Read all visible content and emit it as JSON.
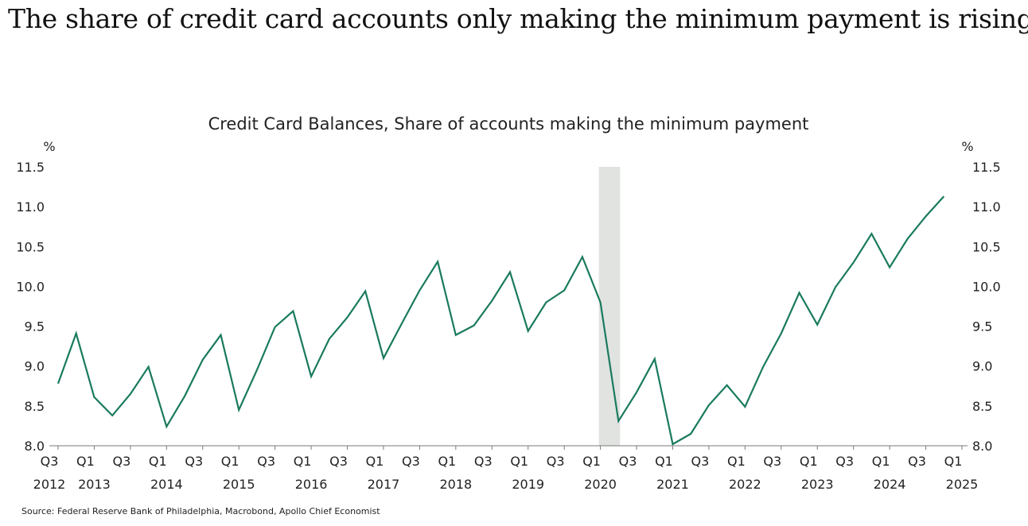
{
  "headline": "The share of credit card accounts only making the minimum payment is rising",
  "source": "Source: Federal Reserve Bank of Philadelphia, Macrobond, Apollo Chief Economist",
  "chart_data": {
    "type": "line",
    "title": "Credit Card Balances, Share of accounts making the minimum payment",
    "y_unit_left": "%",
    "y_unit_right": "%",
    "ylim": [
      8.0,
      11.5
    ],
    "yticks": [
      "8.0",
      "8.5",
      "9.0",
      "9.5",
      "10.0",
      "10.5",
      "11.0",
      "11.5"
    ],
    "xtick_labels": [
      "Q3",
      "Q1",
      "Q3",
      "Q1",
      "Q3",
      "Q1",
      "Q3",
      "Q1",
      "Q3",
      "Q1",
      "Q3",
      "Q1",
      "Q3",
      "Q1",
      "Q3",
      "Q1",
      "Q3",
      "Q1",
      "Q3",
      "Q1",
      "Q3",
      "Q1",
      "Q3",
      "Q1",
      "Q3",
      "Q1"
    ],
    "year_labels": [
      "2012",
      "2013",
      "2014",
      "2015",
      "2016",
      "2017",
      "2018",
      "2019",
      "2020",
      "2021",
      "2022",
      "2023",
      "2024",
      "2025"
    ],
    "line_color": "#1a7a5e",
    "recession_shading": {
      "from": "2020-Q1",
      "to": "2020-Q2",
      "color": "#e1e3e1"
    },
    "series": [
      {
        "x": [
          "2012-Q3",
          "2012-Q4",
          "2013-Q1",
          "2013-Q2",
          "2013-Q3",
          "2013-Q4",
          "2014-Q1",
          "2014-Q2",
          "2014-Q3",
          "2014-Q4",
          "2015-Q1",
          "2015-Q2",
          "2015-Q3",
          "2015-Q4",
          "2016-Q1",
          "2016-Q2",
          "2016-Q3",
          "2016-Q4",
          "2017-Q1",
          "2017-Q2",
          "2017-Q3",
          "2017-Q4",
          "2018-Q1",
          "2018-Q2",
          "2018-Q3",
          "2018-Q4",
          "2019-Q1",
          "2019-Q2",
          "2019-Q3",
          "2019-Q4",
          "2020-Q1",
          "2020-Q2",
          "2020-Q3",
          "2020-Q4",
          "2021-Q1",
          "2021-Q2",
          "2021-Q3",
          "2021-Q4",
          "2022-Q1",
          "2022-Q2",
          "2022-Q3",
          "2022-Q4",
          "2023-Q1",
          "2023-Q2",
          "2023-Q3",
          "2023-Q4",
          "2024-Q1",
          "2024-Q2",
          "2024-Q3",
          "2024-Q4"
        ],
        "values": [
          8.78,
          9.41,
          8.61,
          8.38,
          8.65,
          8.99,
          8.24,
          8.62,
          9.08,
          9.39,
          8.45,
          8.95,
          9.49,
          9.69,
          8.87,
          9.34,
          9.61,
          9.94,
          9.1,
          9.53,
          9.95,
          10.31,
          9.39,
          9.51,
          9.82,
          10.18,
          9.44,
          9.8,
          9.95,
          10.37,
          9.8,
          8.31,
          8.67,
          9.09,
          8.02,
          8.15,
          8.51,
          8.76,
          8.49,
          8.99,
          9.41,
          9.92,
          9.52,
          9.99,
          10.3,
          10.66,
          10.24,
          10.6,
          10.88,
          11.13
        ]
      }
    ]
  }
}
